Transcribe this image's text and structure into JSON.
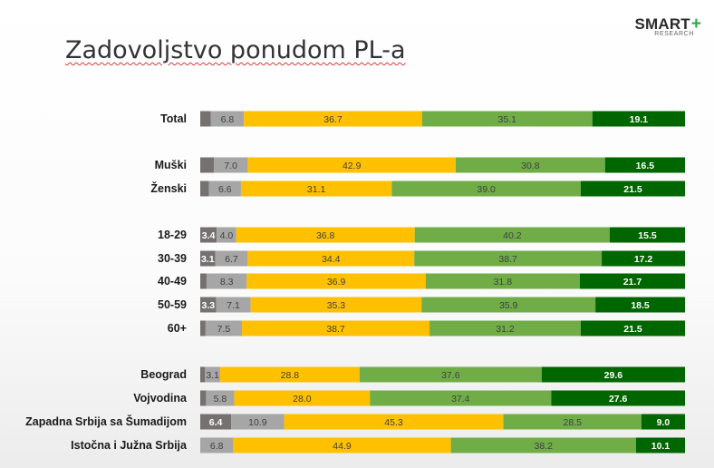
{
  "title": "Zadovoljstvo ponudom PL-a",
  "logo": {
    "word": "SMART",
    "plus": "+",
    "sub": "RESEARCH"
  },
  "colors": {
    "seg1": "#767171",
    "seg2": "#a6a6a6",
    "seg3": "#ffc000",
    "seg4": "#70ad47",
    "seg5": "#006600",
    "label_dark": "#404040",
    "label_light": "#ffffff"
  },
  "chart_data": {
    "type": "bar",
    "orientation": "horizontal",
    "stacked": true,
    "percent_scale": true,
    "categories": [
      "Total",
      "Muški",
      "Ženski",
      "18-29",
      "30-39",
      "40-49",
      "50-59",
      "60+",
      "Beograd",
      "Vojvodina",
      "Zapadna Srbija sa Šumadijom",
      "Istočna i Južna Srbija"
    ],
    "groups": [
      [
        "Total"
      ],
      [
        "Muški",
        "Ženski"
      ],
      [
        "18-29",
        "30-39",
        "40-49",
        "50-59",
        "60+"
      ],
      [
        "Beograd",
        "Vojvodina",
        "Zapadna Srbija sa Šumadijom",
        "Istočna i Južna Srbija"
      ]
    ],
    "series": [
      {
        "values": [
          2.2,
          2.8,
          1.8,
          3.4,
          3.1,
          1.3,
          3.3,
          1.1,
          1.0,
          1.2,
          6.4,
          0.0
        ],
        "labels": [
          "",
          "",
          "",
          "3.4",
          "3.1",
          "",
          "3.3",
          "",
          "",
          "",
          "6.4",
          ""
        ]
      },
      {
        "values": [
          6.8,
          7.0,
          6.6,
          4.0,
          6.7,
          8.3,
          7.1,
          7.5,
          3.1,
          5.8,
          10.9,
          6.8
        ],
        "labels": [
          "6.8",
          "7.0",
          "6.6",
          "4.0",
          "6.7",
          "8.3",
          "7.1",
          "7.5",
          "3.1",
          "5.8",
          "10.9",
          "6.8"
        ]
      },
      {
        "values": [
          36.7,
          42.9,
          31.1,
          36.8,
          34.4,
          36.9,
          35.3,
          38.7,
          28.8,
          28.0,
          45.3,
          44.9
        ],
        "labels": [
          "36.7",
          "42.9",
          "31.1",
          "36.8",
          "34.4",
          "36.9",
          "35.3",
          "38.7",
          "28.8",
          "28.0",
          "45.3",
          "44.9"
        ]
      },
      {
        "values": [
          35.1,
          30.8,
          39.0,
          40.2,
          38.7,
          31.8,
          35.9,
          31.2,
          37.6,
          37.4,
          28.5,
          38.2
        ],
        "labels": [
          "35.1",
          "30.8",
          "39.0",
          "40.2",
          "38.7",
          "31.8",
          "35.9",
          "31.2",
          "37.6",
          "37.4",
          "28.5",
          "38.2"
        ]
      },
      {
        "values": [
          19.1,
          16.5,
          21.5,
          15.5,
          17.2,
          21.7,
          18.5,
          21.5,
          29.6,
          27.6,
          9.0,
          10.1
        ],
        "labels": [
          "19.1",
          "16.5",
          "21.5",
          "15.5",
          "17.2",
          "21.7",
          "18.5",
          "21.5",
          "29.6",
          "27.6",
          "9.0",
          "10.1"
        ]
      }
    ],
    "legend": "none",
    "grid": false
  }
}
